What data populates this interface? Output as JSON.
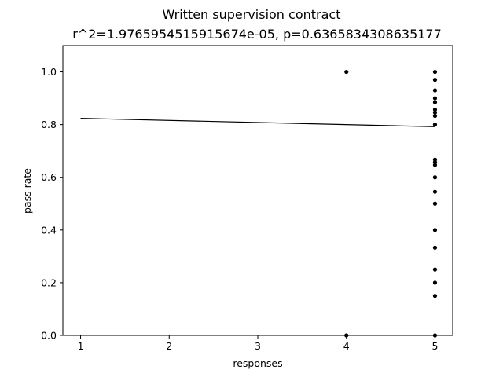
{
  "chart_data": {
    "type": "scatter",
    "title": "Written supervision contract",
    "subtitle": "r^2=1.9765954515915674e-05, p=0.6365834308635177",
    "xlabel": "responses",
    "ylabel": "pass rate",
    "xlim": [
      0.8,
      5.2
    ],
    "ylim": [
      0.0,
      1.1
    ],
    "xticks": [
      1,
      2,
      3,
      4,
      5
    ],
    "xtick_labels": [
      "1",
      "2",
      "3",
      "4",
      "5"
    ],
    "yticks": [
      0.0,
      0.2,
      0.4,
      0.6,
      0.8,
      1.0
    ],
    "ytick_labels": [
      "0.0",
      "0.2",
      "0.4",
      "0.6",
      "0.8",
      "1.0"
    ],
    "grid": false,
    "points": [
      {
        "x": 4,
        "y": 1.0
      },
      {
        "x": 4,
        "y": 0.0
      },
      {
        "x": 5,
        "y": 1.0
      },
      {
        "x": 5,
        "y": 0.97
      },
      {
        "x": 5,
        "y": 0.93
      },
      {
        "x": 5,
        "y": 0.9
      },
      {
        "x": 5,
        "y": 0.885
      },
      {
        "x": 5,
        "y": 0.857
      },
      {
        "x": 5,
        "y": 0.846
      },
      {
        "x": 5,
        "y": 0.833
      },
      {
        "x": 5,
        "y": 0.8
      },
      {
        "x": 5,
        "y": 0.667
      },
      {
        "x": 5,
        "y": 0.657
      },
      {
        "x": 5,
        "y": 0.647
      },
      {
        "x": 5,
        "y": 0.6
      },
      {
        "x": 5,
        "y": 0.545
      },
      {
        "x": 5,
        "y": 0.5
      },
      {
        "x": 5,
        "y": 0.4
      },
      {
        "x": 5,
        "y": 0.333
      },
      {
        "x": 5,
        "y": 0.25
      },
      {
        "x": 5,
        "y": 0.2
      },
      {
        "x": 5,
        "y": 0.15
      },
      {
        "x": 5,
        "y": 0.0
      }
    ],
    "regression_line": {
      "x": [
        1,
        5
      ],
      "y": [
        0.824,
        0.792
      ]
    },
    "point_color": "#000000",
    "line_color": "#000000"
  }
}
